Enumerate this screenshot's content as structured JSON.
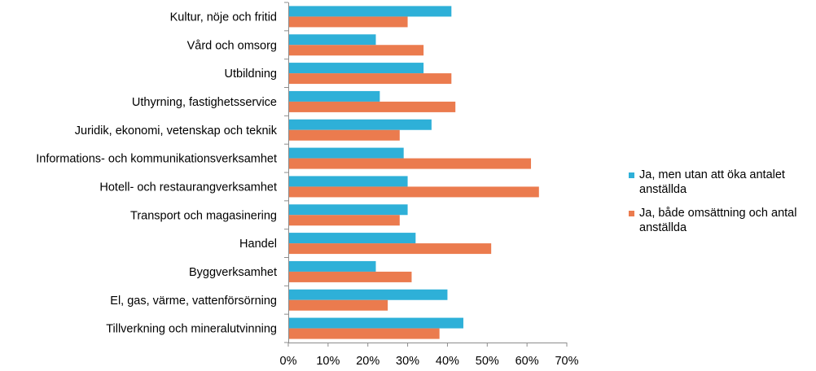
{
  "chart_data": {
    "type": "bar",
    "orientation": "horizontal",
    "categories": [
      "Kultur, nöje och fritid",
      "Vård och omsorg",
      "Utbildning",
      "Uthyrning, fastighetsservice",
      "Juridik, ekonomi, vetenskap och teknik",
      "Informations- och kommunikationsverksamhet",
      "Hotell- och restaurangverksamhet",
      "Transport och magasinering",
      "Handel",
      "Byggverksamhet",
      "El, gas, värme, vattenförsörning",
      "Tillverkning och mineralutvinning"
    ],
    "series": [
      {
        "name": "Ja, men utan att öka antalet anställda",
        "color": "#2eb0d8",
        "values": [
          41,
          22,
          34,
          23,
          36,
          29,
          30,
          30,
          32,
          22,
          40,
          44
        ]
      },
      {
        "name": "Ja, både omsättning och antal anställda",
        "color": "#eb7b4e",
        "values": [
          30,
          34,
          41,
          42,
          28,
          61,
          63,
          28,
          51,
          31,
          25,
          38
        ]
      }
    ],
    "xlim": [
      0,
      70
    ],
    "xticks": [
      "0%",
      "10%",
      "20%",
      "30%",
      "40%",
      "50%",
      "60%",
      "70%"
    ],
    "title": "",
    "xlabel": "",
    "ylabel": "",
    "grid": false,
    "legend_position": "right"
  }
}
